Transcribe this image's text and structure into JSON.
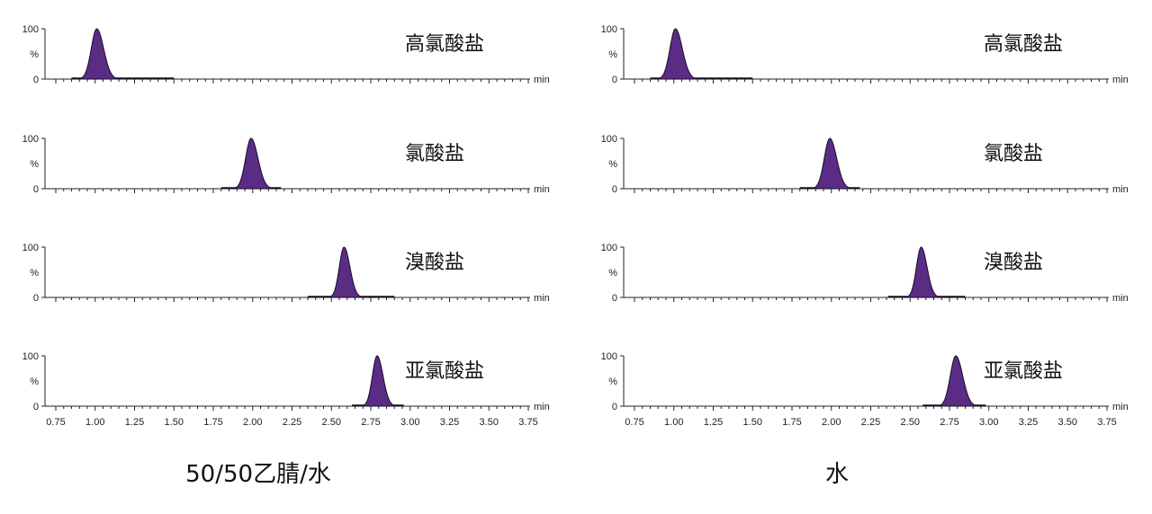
{
  "chart_data": [
    {
      "type": "area",
      "caption": "50/50乙腈/水",
      "x_unit": "min",
      "x_tick_labels": [
        "0.75",
        "1.00",
        "1.25",
        "1.50",
        "1.75",
        "2.00",
        "2.25",
        "2.50",
        "2.75",
        "3.00",
        "3.25",
        "3.50",
        "3.75"
      ],
      "xlim": [
        0.75,
        3.75
      ],
      "y_tick_labels": [
        "100",
        "%",
        "0"
      ],
      "ylim": [
        0,
        100
      ],
      "color": "#5b2c83",
      "series": [
        {
          "name": "高氯酸盐",
          "peak_x": 1.01,
          "peak_y": 100,
          "width": 0.035,
          "baseline_x": [
            0.85,
            1.5
          ]
        },
        {
          "name": "氯酸盐",
          "peak_x": 1.99,
          "peak_y": 100,
          "width": 0.035,
          "baseline_x": [
            1.8,
            2.18
          ]
        },
        {
          "name": "溴酸盐",
          "peak_x": 2.58,
          "peak_y": 100,
          "width": 0.03,
          "baseline_x": [
            2.35,
            2.9
          ]
        },
        {
          "name": "亚氯酸盐",
          "peak_x": 2.79,
          "peak_y": 100,
          "width": 0.03,
          "baseline_x": [
            2.63,
            2.96
          ]
        }
      ]
    },
    {
      "type": "area",
      "caption": "水",
      "x_unit": "min",
      "x_tick_labels": [
        "0.75",
        "1.00",
        "1.25",
        "1.50",
        "1.75",
        "2.00",
        "2.25",
        "2.50",
        "2.75",
        "3.00",
        "3.25",
        "3.50",
        "3.75"
      ],
      "xlim": [
        0.75,
        3.75
      ],
      "y_tick_labels": [
        "100",
        "%",
        "0"
      ],
      "ylim": [
        0,
        100
      ],
      "color": "#5b2c83",
      "series": [
        {
          "name": "高氯酸盐",
          "peak_x": 1.01,
          "peak_y": 100,
          "width": 0.035,
          "baseline_x": [
            0.85,
            1.5
          ]
        },
        {
          "name": "氯酸盐",
          "peak_x": 1.99,
          "peak_y": 100,
          "width": 0.035,
          "baseline_x": [
            1.8,
            2.18
          ]
        },
        {
          "name": "溴酸盐",
          "peak_x": 2.57,
          "peak_y": 100,
          "width": 0.03,
          "baseline_x": [
            2.36,
            2.85
          ]
        },
        {
          "name": "亚氯酸盐",
          "peak_x": 2.79,
          "peak_y": 100,
          "width": 0.035,
          "baseline_x": [
            2.58,
            2.98
          ]
        }
      ]
    }
  ]
}
